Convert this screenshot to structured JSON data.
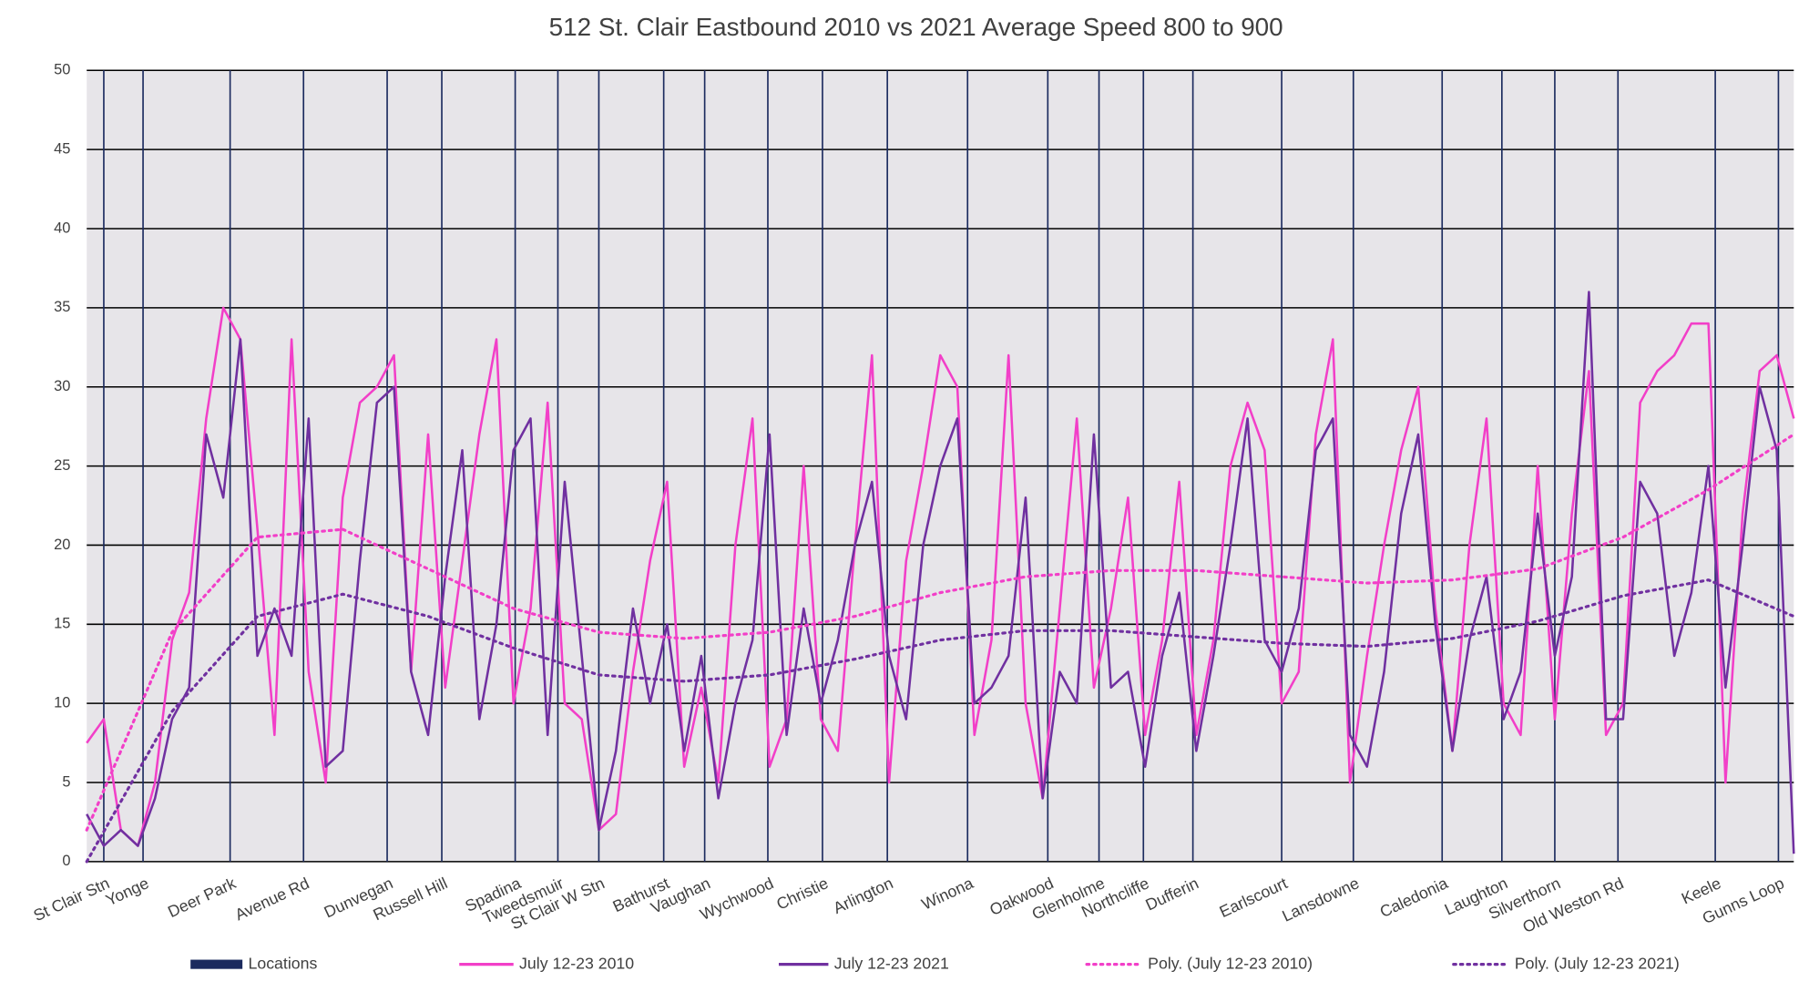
{
  "chart_data": {
    "type": "line",
    "title": "512 St. Clair Eastbound 2010 vs 2021 Average Speed 800 to 900",
    "xlim": [
      0,
      100
    ],
    "ylim": [
      0,
      50
    ],
    "yticks": [
      0,
      5,
      10,
      15,
      20,
      25,
      30,
      35,
      40,
      45,
      50
    ],
    "grid": true,
    "x": [
      0,
      1,
      2,
      3,
      4,
      5,
      6,
      7,
      8,
      9,
      10,
      11,
      12,
      13,
      14,
      15,
      16,
      17,
      18,
      19,
      20,
      21,
      22,
      23,
      24,
      25,
      26,
      27,
      28,
      29,
      30,
      31,
      32,
      33,
      34,
      35,
      36,
      37,
      38,
      39,
      40,
      41,
      42,
      43,
      44,
      45,
      46,
      47,
      48,
      49,
      50,
      51,
      52,
      53,
      54,
      55,
      56,
      57,
      58,
      59,
      60,
      61,
      62,
      63,
      64,
      65,
      66,
      67,
      68,
      69,
      70,
      71,
      72,
      73,
      74,
      75,
      76,
      77,
      78,
      79,
      80,
      81,
      82,
      83,
      84,
      85,
      86,
      87,
      88,
      89,
      90,
      91,
      92,
      93,
      94,
      95,
      96,
      97,
      98,
      99,
      100
    ],
    "series": [
      {
        "name": "Locations",
        "type": "bar",
        "color": "#1b2a5e",
        "categories": [
          "St Clair Stn",
          "Yonge",
          "Deer Park",
          "Avenue Rd",
          "Dunvegan",
          "Russell Hill",
          "Spadina",
          "Tweedsmuir",
          "St Clair W Stn",
          "Bathurst",
          "Vaughan",
          "Wychwood",
          "Christie",
          "Arlington",
          "Winona",
          "Oakwood",
          "Glenholme",
          "Northcliffe",
          "Dufferin",
          "Earlscourt",
          "Lansdowne",
          "Caledonia",
          "Laughton",
          "Silverthorn",
          "Old Weston Rd",
          "Keele",
          "Gunns Loop"
        ],
        "x": [
          1.0,
          3.3,
          8.4,
          12.7,
          17.6,
          20.8,
          25.1,
          27.6,
          30.0,
          33.8,
          36.2,
          39.9,
          43.1,
          46.9,
          51.6,
          56.3,
          59.3,
          61.9,
          64.8,
          70.0,
          74.2,
          79.4,
          82.9,
          86.0,
          89.7,
          95.4,
          99.1
        ],
        "values": [
          50,
          50,
          50,
          50,
          50,
          50,
          50,
          50,
          50,
          50,
          50,
          50,
          50,
          50,
          50,
          50,
          50,
          50,
          50,
          50,
          50,
          50,
          50,
          50,
          50,
          50,
          50
        ]
      },
      {
        "name": "July 12-23 2010",
        "type": "line",
        "color": "#f23fc8",
        "style": "solid",
        "values": [
          7.5,
          9,
          2,
          1,
          5,
          14,
          17,
          28,
          35,
          33,
          21,
          8,
          33,
          12,
          5,
          23,
          29,
          30,
          32,
          12,
          27,
          11,
          19,
          27,
          33,
          10,
          16,
          29,
          10,
          9,
          2,
          3,
          12,
          19,
          24,
          6,
          11,
          5,
          20,
          28,
          6,
          9,
          25,
          9,
          7,
          20,
          32,
          5,
          19,
          25,
          32,
          30,
          8,
          14,
          32,
          10,
          4,
          16,
          28,
          11,
          16,
          23,
          8,
          14,
          24,
          8,
          14,
          25,
          29,
          26,
          10,
          12,
          27,
          33,
          5,
          13,
          20,
          26,
          30,
          16,
          7,
          20,
          28,
          10,
          8,
          25,
          9,
          22,
          31,
          8,
          10,
          29,
          31,
          32,
          34,
          34,
          5,
          22,
          31,
          32,
          28
        ]
      },
      {
        "name": "July 12-23 2021",
        "type": "line",
        "color": "#7030a0",
        "style": "solid",
        "values": [
          3,
          1,
          2,
          1,
          4,
          9,
          11,
          27,
          23,
          33,
          13,
          16,
          13,
          28,
          6,
          7,
          19,
          29,
          30,
          12,
          8,
          18,
          26,
          9,
          15,
          26,
          28,
          8,
          24,
          13,
          2,
          7,
          16,
          10,
          15,
          7,
          13,
          4,
          10,
          14,
          27,
          8,
          16,
          10,
          14,
          20,
          24,
          13,
          9,
          20,
          25,
          28,
          10,
          11,
          13,
          23,
          4,
          12,
          10,
          27,
          11,
          12,
          6,
          13,
          17,
          7,
          13,
          20,
          28,
          14,
          12,
          16,
          26,
          28,
          8,
          6,
          12,
          22,
          27,
          15,
          7,
          14,
          18,
          9,
          12,
          22,
          13,
          18,
          36,
          9,
          9,
          24,
          22,
          13,
          17,
          25,
          11,
          20,
          30,
          26,
          0.5
        ]
      },
      {
        "name": "Poly. (July 12-23 2010)",
        "type": "line",
        "color": "#f23fc8",
        "style": "dotted",
        "x": [
          0,
          5,
          10,
          15,
          20,
          25,
          30,
          35,
          40,
          45,
          50,
          55,
          60,
          65,
          70,
          75,
          80,
          85,
          90,
          95,
          100
        ],
        "values": [
          2,
          14.5,
          20.5,
          21,
          18.5,
          16,
          14.5,
          14.1,
          14.5,
          15.5,
          17,
          18,
          18.4,
          18.4,
          18,
          17.6,
          17.8,
          18.5,
          20.5,
          23.5,
          27
        ]
      },
      {
        "name": "Poly. (July 12-23 2021)",
        "type": "line",
        "color": "#7030a0",
        "style": "dotted",
        "x": [
          0,
          5,
          10,
          15,
          20,
          25,
          30,
          35,
          40,
          45,
          50,
          55,
          60,
          65,
          70,
          75,
          80,
          85,
          90,
          95,
          100
        ],
        "values": [
          0,
          9.5,
          15.5,
          16.9,
          15.5,
          13.5,
          11.8,
          11.4,
          11.8,
          12.8,
          14,
          14.6,
          14.6,
          14.2,
          13.8,
          13.6,
          14.1,
          15.2,
          16.8,
          17.8,
          15.5
        ]
      }
    ]
  }
}
